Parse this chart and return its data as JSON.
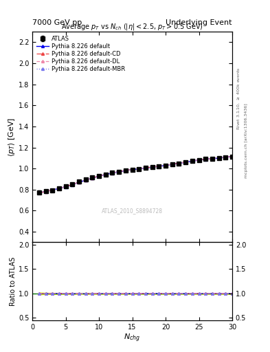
{
  "title_left": "7000 GeV pp",
  "title_right": "Underlying Event",
  "plot_title": "Average $p_T$ vs $N_{ch}$ ($|\\eta| < 2.5$, $p_T > 0.5$ GeV)",
  "xlabel": "$N_{chg}$",
  "ylabel_main": "$\\langle p_T \\rangle$ [GeV]",
  "ylabel_ratio": "Ratio to ATLAS",
  "watermark": "ATLAS_2010_S8894728",
  "right_label_top": "Rivet 3.1.10, $\\geq$ 400k events",
  "right_label_bot": "mcplots.cern.ch [arXiv:1306.3436]",
  "xlim": [
    0,
    30
  ],
  "ylim_main": [
    0.3,
    2.3
  ],
  "ylim_ratio": [
    0.45,
    2.05
  ],
  "yticks_main": [
    0.4,
    0.6,
    0.8,
    1.0,
    1.2,
    1.4,
    1.6,
    1.8,
    2.0,
    2.2
  ],
  "yticks_ratio": [
    0.5,
    1.0,
    1.5,
    2.0
  ],
  "nch_data": [
    1,
    2,
    3,
    4,
    5,
    6,
    7,
    8,
    9,
    10,
    11,
    12,
    13,
    14,
    15,
    16,
    17,
    18,
    19,
    20,
    21,
    22,
    23,
    24,
    25,
    26,
    27,
    28,
    29,
    30
  ],
  "atlas_pt": [
    0.775,
    0.785,
    0.795,
    0.81,
    0.83,
    0.85,
    0.875,
    0.895,
    0.915,
    0.93,
    0.945,
    0.96,
    0.972,
    0.982,
    0.99,
    0.998,
    1.005,
    1.012,
    1.02,
    1.03,
    1.04,
    1.05,
    1.06,
    1.072,
    1.082,
    1.09,
    1.095,
    1.1,
    1.108,
    1.115
  ],
  "atlas_err": [
    0.015,
    0.01,
    0.01,
    0.009,
    0.008,
    0.008,
    0.008,
    0.008,
    0.008,
    0.008,
    0.008,
    0.008,
    0.008,
    0.008,
    0.008,
    0.008,
    0.008,
    0.008,
    0.008,
    0.008,
    0.008,
    0.008,
    0.008,
    0.008,
    0.009,
    0.009,
    0.009,
    0.01,
    0.01,
    0.01
  ],
  "pythia_default_pt": [
    0.77,
    0.782,
    0.796,
    0.812,
    0.828,
    0.848,
    0.87,
    0.89,
    0.91,
    0.928,
    0.944,
    0.958,
    0.97,
    0.981,
    0.99,
    0.998,
    1.005,
    1.013,
    1.021,
    1.03,
    1.04,
    1.05,
    1.06,
    1.071,
    1.081,
    1.089,
    1.094,
    1.099,
    1.107,
    1.114
  ],
  "pythia_cd_pt": [
    0.77,
    0.782,
    0.797,
    0.813,
    0.83,
    0.85,
    0.872,
    0.892,
    0.912,
    0.93,
    0.946,
    0.96,
    0.972,
    0.983,
    0.992,
    1.0,
    1.007,
    1.015,
    1.023,
    1.032,
    1.042,
    1.052,
    1.062,
    1.073,
    1.083,
    1.091,
    1.096,
    1.101,
    1.109,
    1.116
  ],
  "pythia_dl_pt": [
    0.771,
    0.783,
    0.797,
    0.813,
    0.829,
    0.849,
    0.871,
    0.891,
    0.911,
    0.929,
    0.945,
    0.959,
    0.971,
    0.982,
    0.991,
    0.999,
    1.006,
    1.014,
    1.022,
    1.031,
    1.041,
    1.051,
    1.061,
    1.072,
    1.082,
    1.09,
    1.095,
    1.1,
    1.108,
    1.115
  ],
  "pythia_mbr_pt": [
    0.772,
    0.784,
    0.798,
    0.814,
    0.83,
    0.85,
    0.872,
    0.892,
    0.912,
    0.93,
    0.946,
    0.96,
    0.972,
    0.983,
    0.992,
    1.0,
    1.007,
    1.015,
    1.023,
    1.032,
    1.042,
    1.052,
    1.062,
    1.073,
    1.083,
    1.091,
    1.096,
    1.101,
    1.109,
    1.116
  ],
  "color_default": "#0000ee",
  "color_cd": "#ee4444",
  "color_dl": "#ee88aa",
  "color_mbr": "#7777ee",
  "color_atlas": "#000000",
  "color_band_green": "#88dd00",
  "color_band_yellow": "#ffff00"
}
